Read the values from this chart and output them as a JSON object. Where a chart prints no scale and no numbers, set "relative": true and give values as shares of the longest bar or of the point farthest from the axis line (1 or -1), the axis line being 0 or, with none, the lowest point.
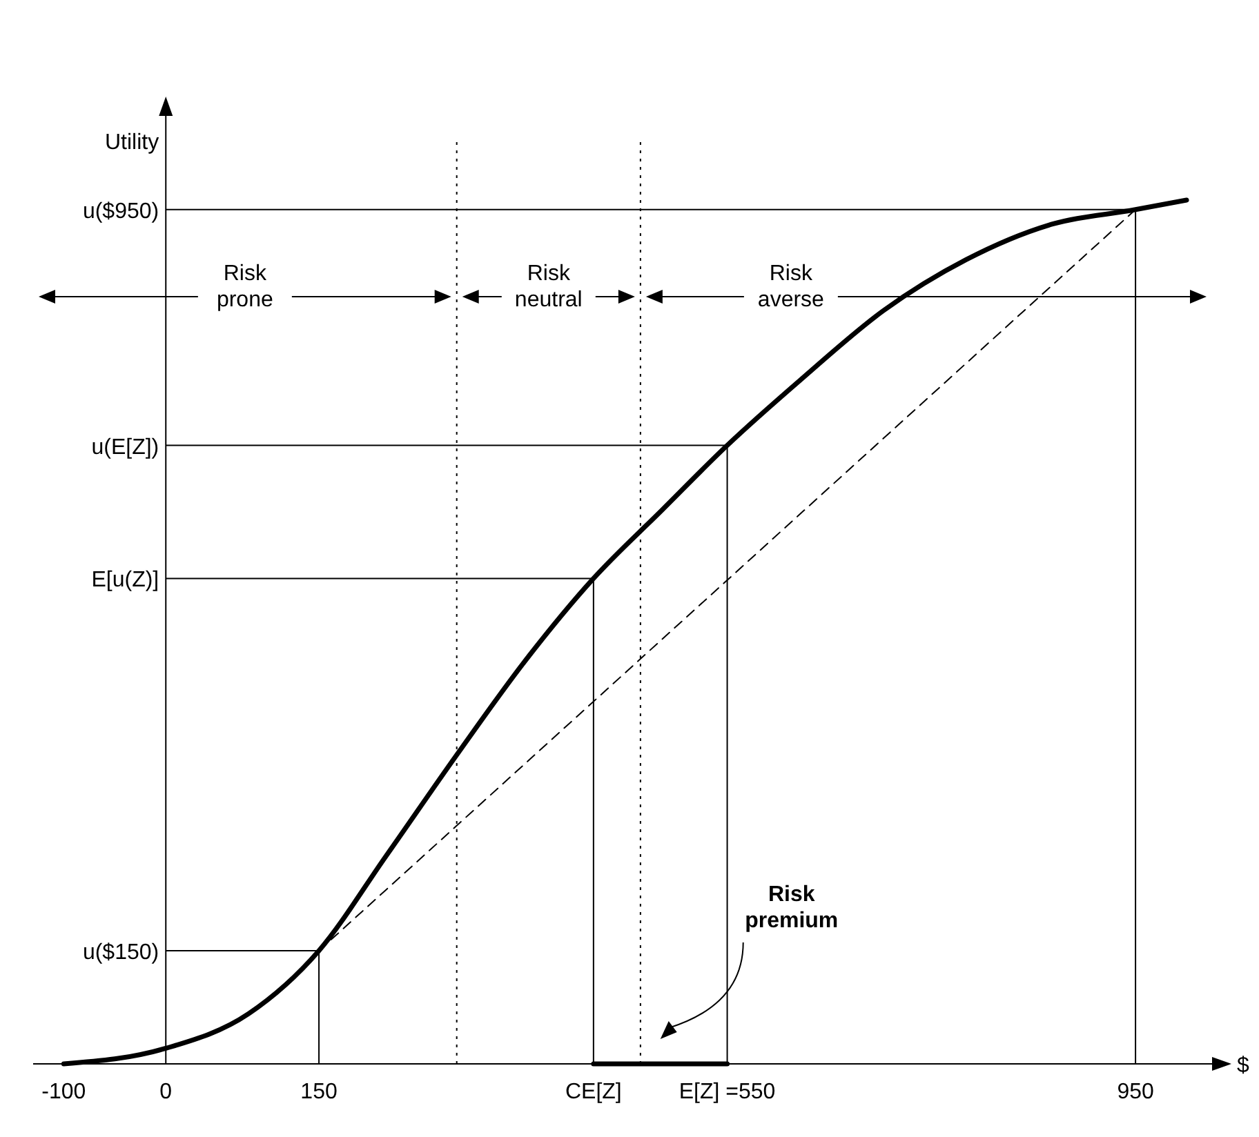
{
  "chart_data": {
    "type": "line",
    "relative": true,
    "xlabel": "$",
    "ylabel": "Utility",
    "xlim": [
      -130,
      1025
    ],
    "xticks": [
      -100,
      0,
      150,
      {
        "value": 419,
        "label": "CE[Z]"
      },
      {
        "value": 550,
        "label": "E[Z] =550"
      },
      950
    ],
    "series": [
      {
        "color": "#000000",
        "line_style": "solid",
        "x": [
          -100,
          0,
          81,
          150,
          216,
          284,
          351,
          419,
          486,
          550,
          622,
          703,
          784,
          865,
          950,
          1000
        ],
        "values": [
          0,
          0.018,
          0.058,
          0.131,
          0.241,
          0.356,
          0.465,
          0.562,
          0.641,
          0.716,
          0.792,
          0.872,
          0.931,
          0.971,
          0.989,
          1
        ]
      },
      {
        "color": "#000000",
        "line_style": "dashed",
        "x": [
          150,
          950
        ],
        "values": [
          0.131,
          0.989
        ]
      },
      {
        "color": "#000000",
        "line_style": "solid",
        "x": [
          419,
          550
        ],
        "values": [
          0,
          0
        ]
      }
    ],
    "ref_lines": [
      {
        "axis": "x",
        "value": 285,
        "line_style": "dotted"
      },
      {
        "axis": "x",
        "value": 465,
        "line_style": "dotted"
      },
      {
        "axis": "x",
        "value": 150,
        "line_style": "solid"
      },
      {
        "axis": "x",
        "value": 419,
        "line_style": "solid"
      },
      {
        "axis": "x",
        "value": 550,
        "line_style": "solid"
      },
      {
        "axis": "x",
        "value": 950,
        "line_style": "solid"
      },
      {
        "axis": "y",
        "value": 0.131,
        "label": "u($150)"
      },
      {
        "axis": "y",
        "value": 0.562,
        "label": "E[u(Z)]"
      },
      {
        "axis": "y",
        "value": 0.716,
        "label": "u(E[Z])"
      },
      {
        "axis": "y",
        "value": 0.989,
        "label": "u($950)"
      }
    ],
    "annotations": [
      "Risk\nprone",
      "Risk\nneutral",
      "Risk\naverse",
      "Risk\npremium"
    ]
  }
}
